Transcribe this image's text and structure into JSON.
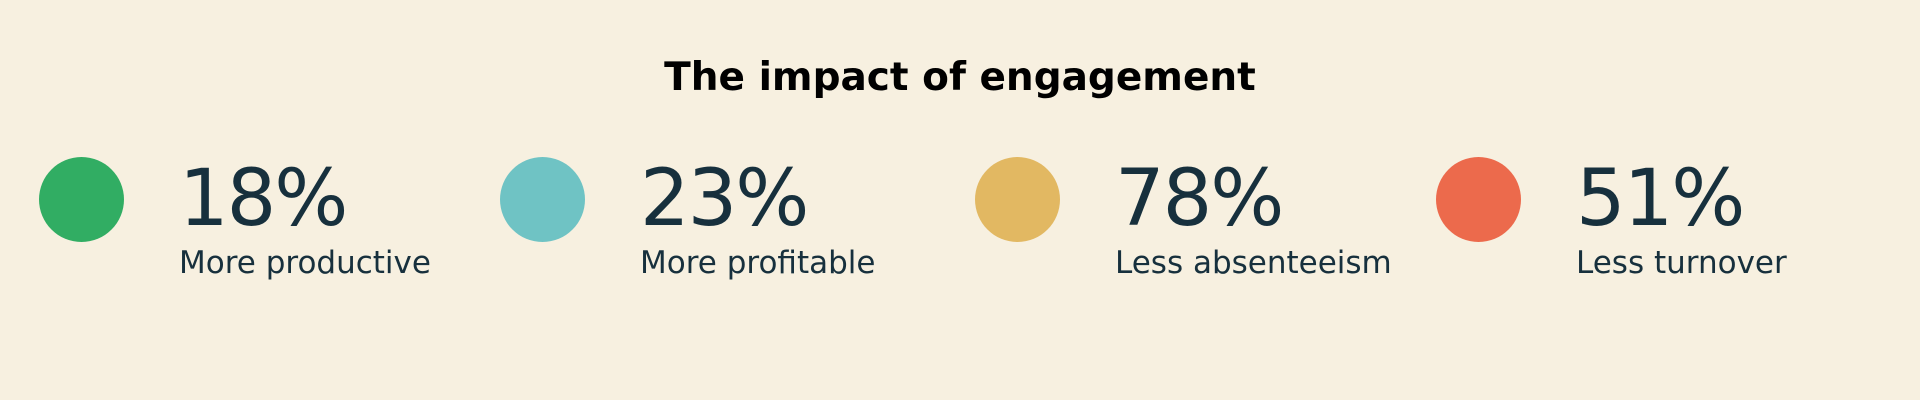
{
  "title": "The impact of engagement",
  "stats": [
    {
      "value": "18%",
      "label": "More productive",
      "color": "#31ad63"
    },
    {
      "value": "23%",
      "label": "More profitable",
      "color": "#6fc3c4"
    },
    {
      "value": "78%",
      "label": "Less absenteeism",
      "color": "#e2b862"
    },
    {
      "value": "51%",
      "label": "Less turnover",
      "color": "#ec6a4c"
    }
  ]
}
